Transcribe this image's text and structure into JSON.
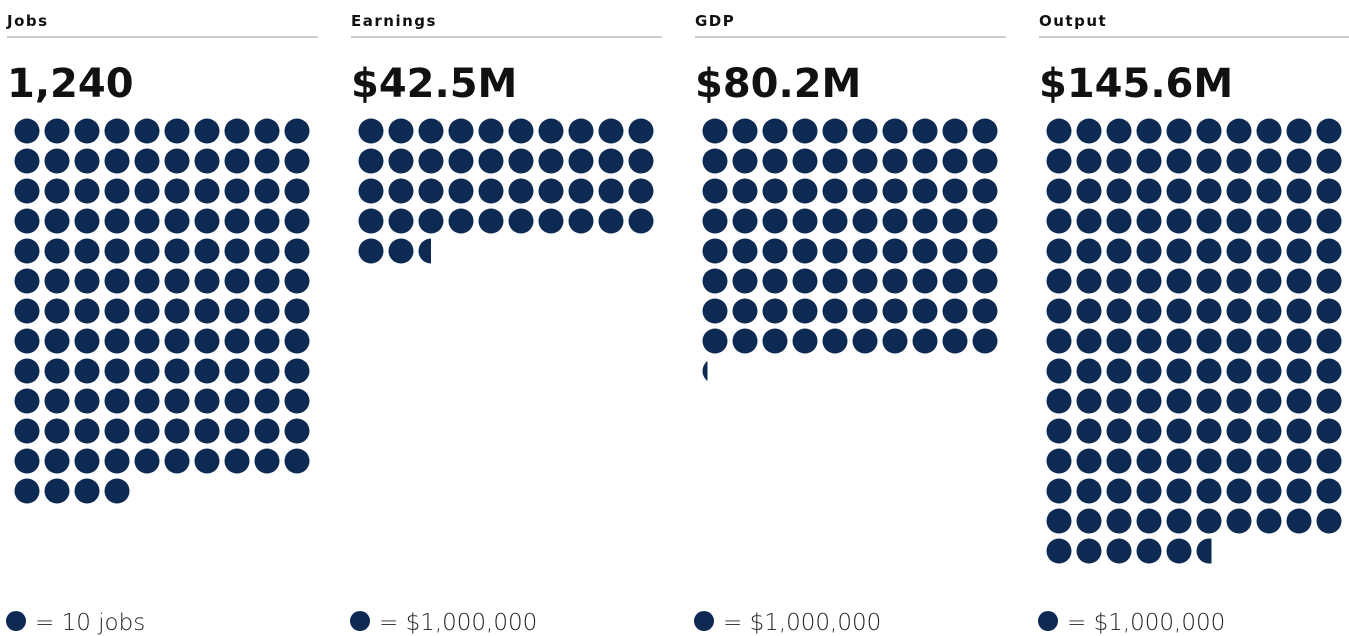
{
  "chart_data": [
    {
      "type": "pictogram",
      "title": "Jobs",
      "value": 1240,
      "value_label": "1,240",
      "unit": 10,
      "unit_label": "= 10 jobs",
      "color": "#0c2a52"
    },
    {
      "type": "pictogram",
      "title": "Earnings",
      "value": 42500000,
      "value_label": "$42.5M",
      "unit": 1000000,
      "unit_label": "= $1,000,000",
      "color": "#0c2a52"
    },
    {
      "type": "pictogram",
      "title": "GDP",
      "value": 80200000,
      "value_label": "$80.2M",
      "unit": 1000000,
      "unit_label": "= $1,000,000",
      "color": "#0c2a52"
    },
    {
      "type": "pictogram",
      "title": "Output",
      "value": 145600000,
      "value_label": "$145.6M",
      "unit": 1000000,
      "unit_label": "= $1,000,000",
      "color": "#0c2a52"
    }
  ]
}
